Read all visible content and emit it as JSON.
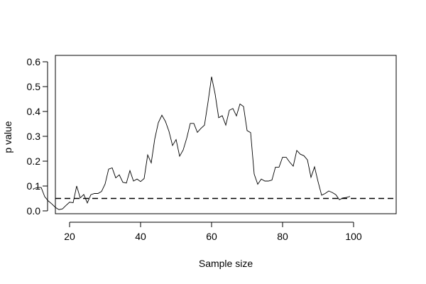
{
  "chart_data": {
    "type": "line",
    "title": "",
    "xlabel": "Sample size",
    "ylabel": "p value",
    "xlim": [
      10,
      100
    ],
    "ylim": [
      0,
      0.62
    ],
    "x_ticks": [
      20,
      40,
      60,
      80,
      100
    ],
    "x_tick_labels": [
      "20",
      "40",
      "60",
      "80",
      "100"
    ],
    "y_ticks": [
      0.0,
      0.1,
      0.2,
      0.3,
      0.4,
      0.5,
      0.6
    ],
    "y_tick_labels": [
      "0.0",
      "0.1",
      "0.2",
      "0.3",
      "0.4",
      "0.5",
      "0.6"
    ],
    "grid": false,
    "legend": "none",
    "reference_line": {
      "y": 0.05,
      "style": "dashed"
    },
    "colors": {
      "line": "#000000",
      "axis": "#000000"
    },
    "series": [
      {
        "x": [
          10,
          11,
          12,
          13,
          14,
          15,
          16,
          17,
          18,
          19,
          20,
          21,
          22,
          23,
          24,
          25,
          26,
          27,
          28,
          29,
          30,
          31,
          32,
          33,
          34,
          35,
          36,
          37,
          38,
          39,
          40,
          41,
          42,
          43,
          44,
          45,
          46,
          47,
          48,
          49,
          50,
          51,
          52,
          53,
          54,
          55,
          56,
          57,
          58,
          59,
          60,
          61,
          62,
          63,
          64,
          65,
          66,
          67,
          68,
          69,
          70,
          71,
          72,
          73,
          74,
          75,
          76,
          77,
          78,
          79,
          80,
          81,
          82,
          83,
          84,
          85,
          86,
          87,
          88,
          89,
          90,
          91,
          92,
          93,
          94,
          95,
          96,
          97,
          98,
          99
        ],
        "y": [
          0.09,
          0.094,
          0.094,
          0.057,
          0.04,
          0.028,
          0.014,
          0.005,
          0.008,
          0.022,
          0.035,
          0.033,
          0.1,
          0.052,
          0.066,
          0.032,
          0.065,
          0.07,
          0.07,
          0.078,
          0.108,
          0.168,
          0.173,
          0.133,
          0.145,
          0.115,
          0.112,
          0.162,
          0.12,
          0.128,
          0.118,
          0.13,
          0.225,
          0.193,
          0.29,
          0.355,
          0.385,
          0.36,
          0.32,
          0.263,
          0.287,
          0.22,
          0.245,
          0.293,
          0.352,
          0.352,
          0.316,
          0.332,
          0.345,
          0.438,
          0.54,
          0.47,
          0.375,
          0.383,
          0.345,
          0.405,
          0.412,
          0.382,
          0.43,
          0.42,
          0.323,
          0.315,
          0.148,
          0.107,
          0.128,
          0.12,
          0.12,
          0.124,
          0.176,
          0.176,
          0.216,
          0.216,
          0.196,
          0.18,
          0.243,
          0.228,
          0.222,
          0.205,
          0.135,
          0.177,
          0.117,
          0.063,
          0.07,
          0.08,
          0.074,
          0.065,
          0.045,
          0.052,
          0.054,
          0.058
        ]
      }
    ]
  }
}
